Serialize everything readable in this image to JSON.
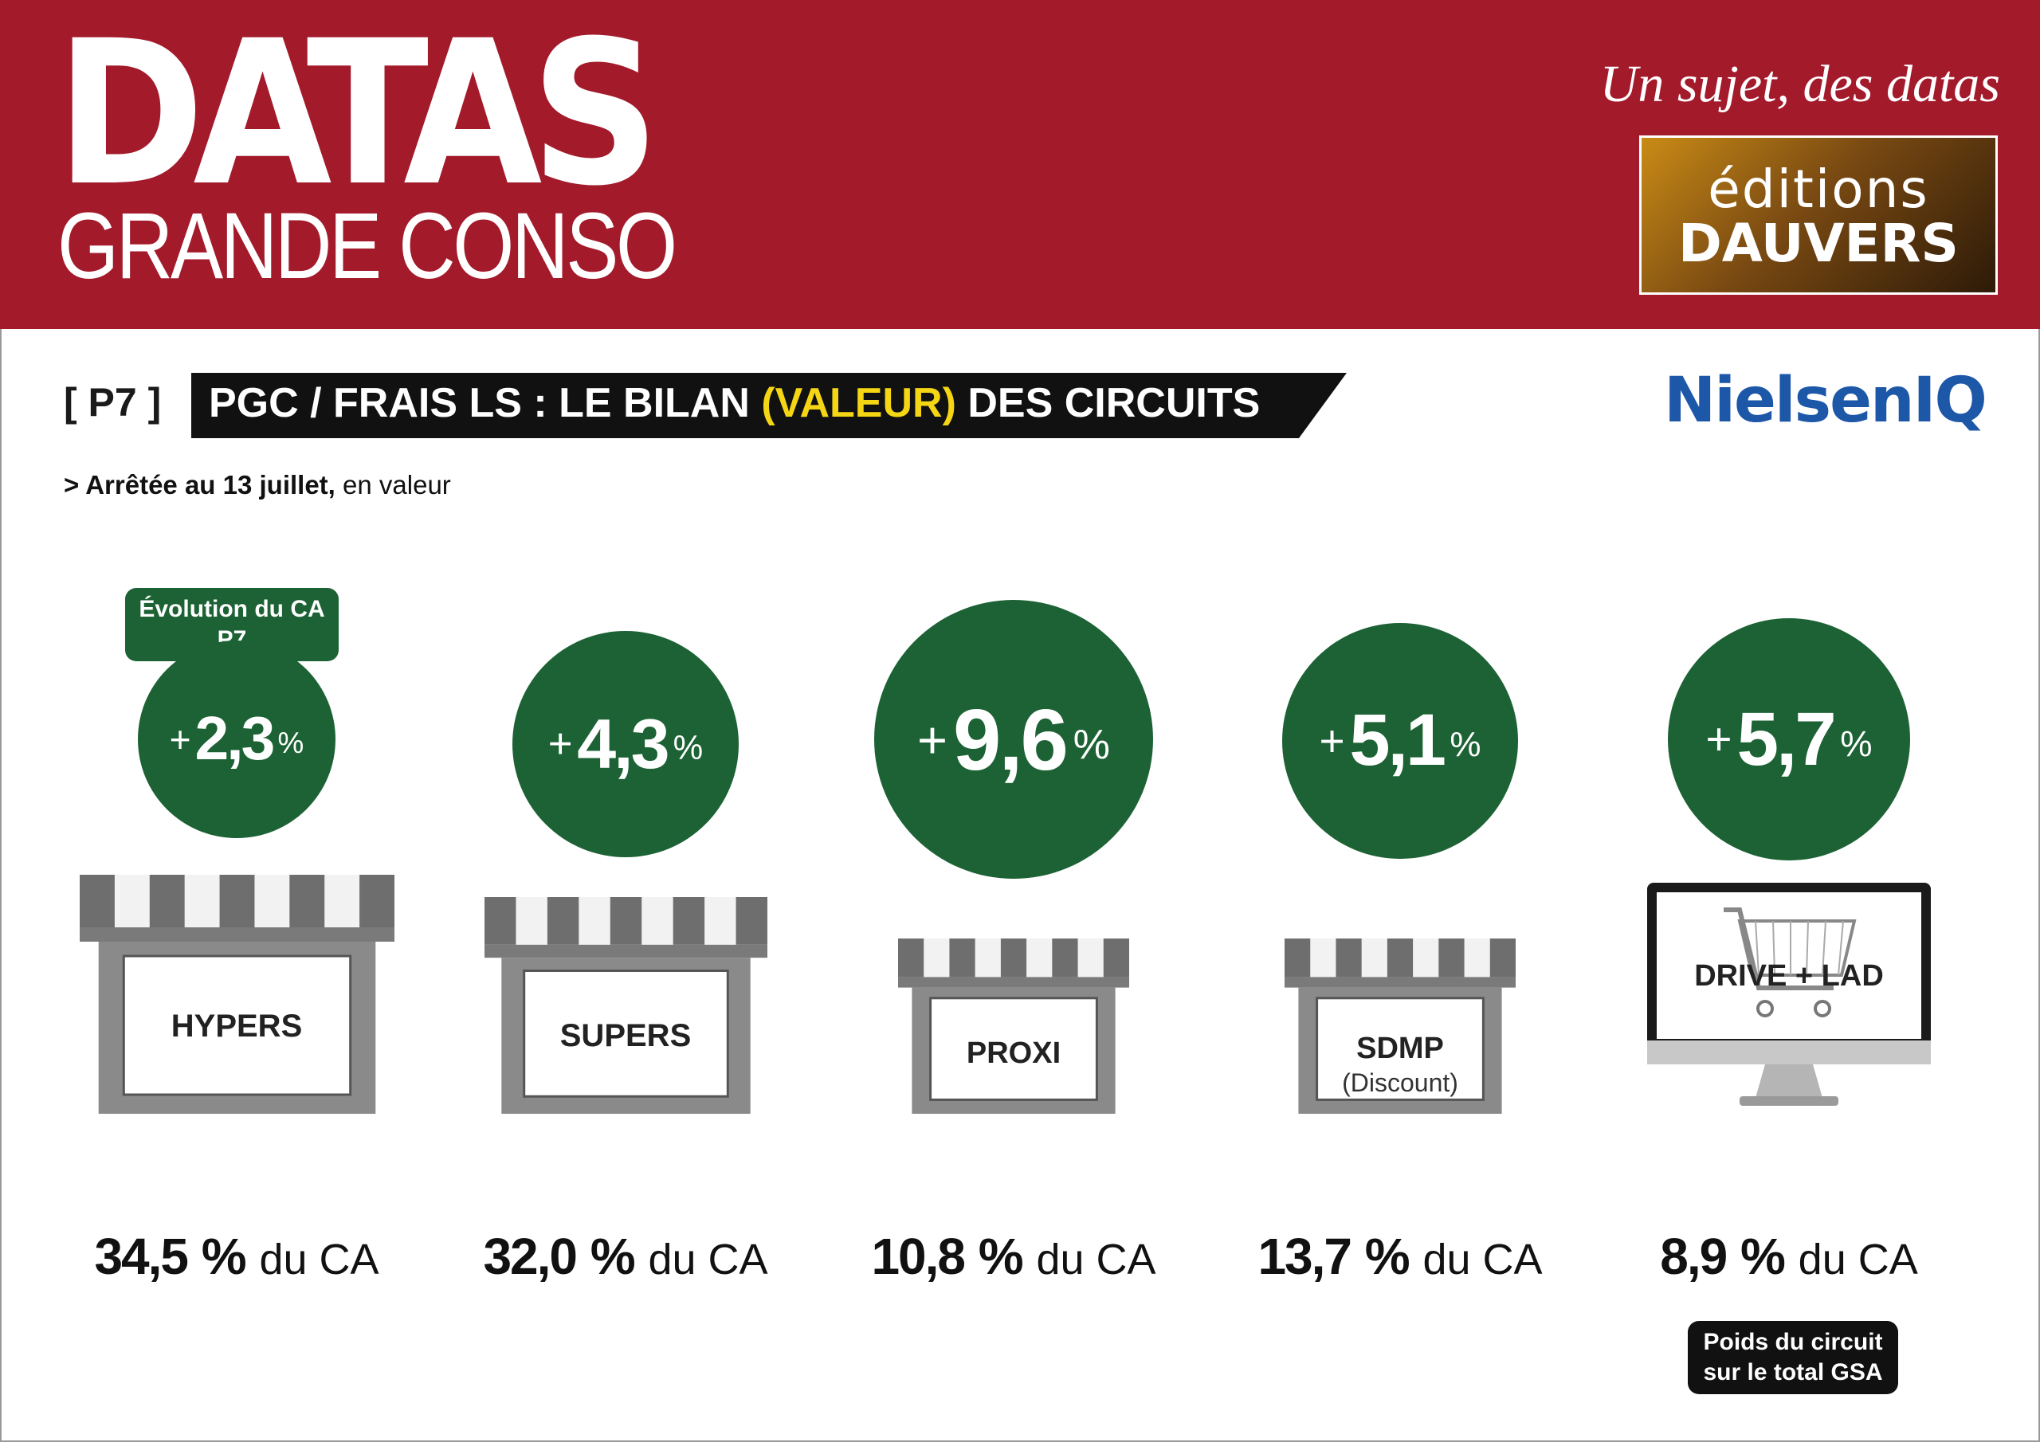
{
  "header": {
    "brand_title": "DATAS",
    "brand_subtitle": "GRANDE CONSO",
    "tagline": "Un sujet, des datas",
    "publisher_line1": "éditions",
    "publisher_line2": "DAUVERS"
  },
  "title_bar": {
    "page_ref": "[ P7 ]",
    "title_before": "PGC / FRAIS LS : LE BILAN ",
    "title_highlight": "(VALEUR)",
    "title_after": " DES CIRCUITS",
    "source_logo": "NielsenIQ"
  },
  "subtitle": {
    "bold": "> Arrêtée au 13 juillet,",
    "normal": " en valeur"
  },
  "labels": {
    "evolution_tag": "Évolution du CA P7",
    "weight_tag": "Poids du circuit sur le total GSA",
    "sign": "+",
    "pct": "%",
    "du_ca": "du CA"
  },
  "colors": {
    "header_red": "#a31a2b",
    "growth_green": "#1c6234",
    "title_yellow": "#f5d614",
    "nielsen_blue": "#1d57a8"
  },
  "chart_data": {
    "type": "bubble",
    "categories": [
      "HYPERS",
      "SUPERS",
      "PROXI",
      "SDMP (Discount)",
      "DRIVE + LAD"
    ],
    "series": [
      {
        "name": "Évolution du CA P7",
        "values": [
          2.3,
          4.3,
          9.6,
          5.1,
          5.7
        ],
        "labels": [
          "2,3",
          "4,3",
          "9,6",
          "5,1",
          "5,7"
        ]
      },
      {
        "name": "Poids du circuit sur le total GSA",
        "values": [
          34.5,
          32.0,
          10.8,
          13.7,
          8.9
        ],
        "labels": [
          "34,5",
          "32,0",
          "10,8",
          "13,7",
          "8,9"
        ]
      }
    ],
    "circuits": [
      {
        "label": "HYPERS",
        "sublabel": "",
        "icon": "store-icon",
        "growth": "2,3",
        "share": "34,5"
      },
      {
        "label": "SUPERS",
        "sublabel": "",
        "icon": "store-icon",
        "growth": "4,3",
        "share": "32,0"
      },
      {
        "label": "PROXI",
        "sublabel": "",
        "icon": "store-icon",
        "growth": "9,6",
        "share": "10,8"
      },
      {
        "label": "SDMP",
        "sublabel": "(Discount)",
        "icon": "store-icon",
        "growth": "5,1",
        "share": "13,7"
      },
      {
        "label": "DRIVE + LAD",
        "sublabel": "",
        "icon": "computer-cart-icon",
        "growth": "5,7",
        "share": "8,9"
      }
    ]
  }
}
